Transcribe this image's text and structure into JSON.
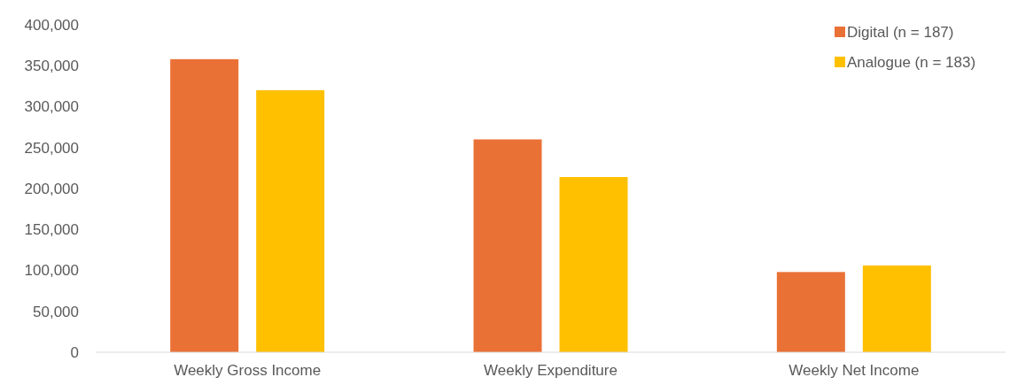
{
  "chart_data": {
    "type": "bar",
    "categories": [
      "Weekly Gross Income",
      "Weekly Expenditure",
      "Weekly Net Income"
    ],
    "series": [
      {
        "name": "Digital (n = 187)",
        "color": "#ea7136",
        "values": [
          358000,
          260000,
          98000
        ]
      },
      {
        "name": "Analogue (n = 183)",
        "color": "#ffc000",
        "values": [
          320000,
          214000,
          106000
        ]
      }
    ],
    "ylim": [
      0,
      400000
    ],
    "yticks": [
      {
        "value": 0,
        "label": "0"
      },
      {
        "value": 50000,
        "label": "50,000"
      },
      {
        "value": 100000,
        "label": "100,000"
      },
      {
        "value": 150000,
        "label": "150,000"
      },
      {
        "value": 200000,
        "label": "200,000"
      },
      {
        "value": 250000,
        "label": "250,000"
      },
      {
        "value": 300000,
        "label": "300,000"
      },
      {
        "value": 350000,
        "label": "350,000"
      },
      {
        "value": 400000,
        "label": "400,000"
      }
    ],
    "grid": false,
    "legend": "top right"
  }
}
